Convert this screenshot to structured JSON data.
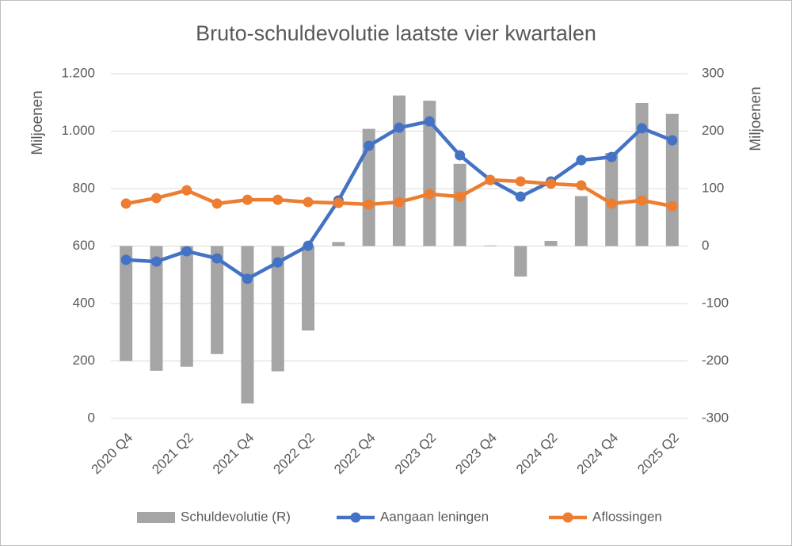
{
  "chart_data": {
    "type": "bar_line",
    "title": "Bruto-schuldevolutie laatste vier kwartalen",
    "ylabel": "Miljoenen",
    "y2label": "Miljoenen",
    "categories": [
      "2020 Q4",
      null,
      "2021 Q2",
      null,
      "2021 Q4",
      null,
      "2022 Q2",
      null,
      "2022 Q4",
      null,
      "2023 Q2",
      null,
      "2023 Q4",
      null,
      "2024 Q2",
      null,
      "2024 Q4",
      null,
      "2025 Q2"
    ],
    "series": [
      {
        "name": "Schuldevolutie (R)",
        "type": "bar",
        "axis": "y2",
        "color": "#a5a5a5",
        "values": [
          -200,
          -217,
          -210,
          -188,
          -274,
          -218,
          -147,
          7,
          204,
          262,
          253,
          143,
          1,
          -53,
          9,
          87,
          162,
          249,
          230
        ]
      },
      {
        "name": "Aangaan leningen",
        "type": "line",
        "color": "#4472c4",
        "values": [
          552,
          546,
          582,
          557,
          486,
          543,
          601,
          759,
          949,
          1012,
          1034,
          916,
          830,
          772,
          825,
          899,
          910,
          1010,
          968
        ]
      },
      {
        "name": "Aflossingen",
        "type": "line",
        "color": "#ed7d31",
        "values": [
          748,
          767,
          794,
          748,
          761,
          761,
          753,
          750,
          745,
          753,
          781,
          772,
          830,
          825,
          817,
          811,
          748,
          759,
          739
        ]
      }
    ],
    "ylim": [
      0,
      1200
    ],
    "yticks": [
      0,
      200,
      400,
      600,
      800,
      {
        "value": 1000,
        "label": "1.000"
      },
      {
        "value": 1200,
        "label": "1.200"
      }
    ],
    "y2lim": [
      -300,
      300
    ],
    "y2ticks": [
      -300,
      -200,
      -100,
      0,
      100,
      200,
      300
    ],
    "grid": true,
    "legend": "bottom"
  }
}
